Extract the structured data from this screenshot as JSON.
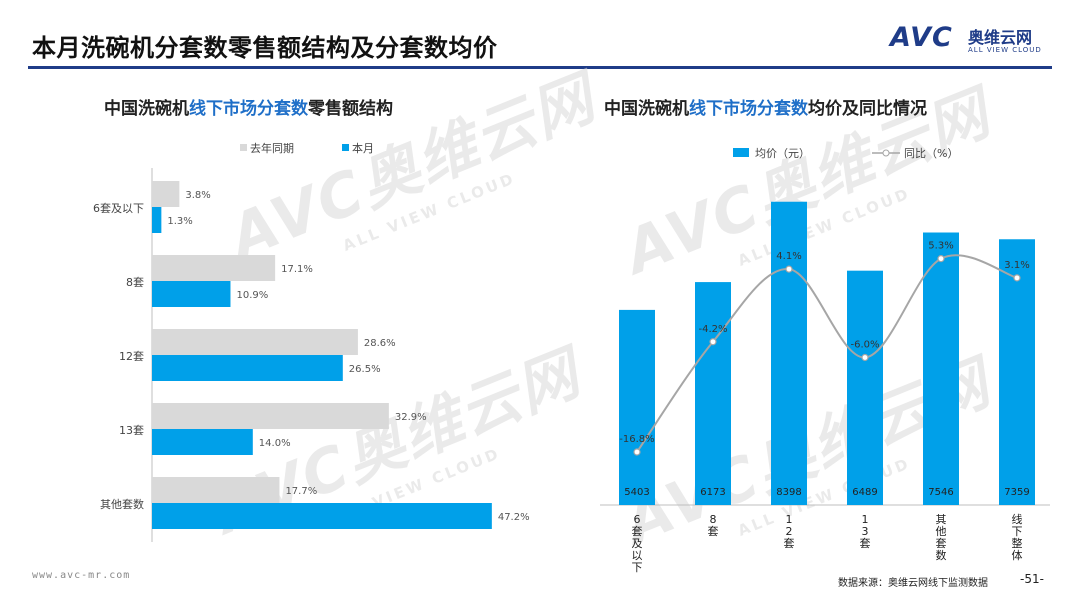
{
  "header": {
    "title": "本月洗碗机分套数零售额结构及分套数均价",
    "logo_mark": "AVC",
    "logo_cn": "奥维云网",
    "logo_en": "ALL VIEW CLOUD",
    "brand_color": "#1f3c88"
  },
  "watermark": {
    "mark": "AVC奥维云网",
    "sub": "ALL VIEW CLOUD"
  },
  "left_chart": {
    "title_pre": "中国洗碗机",
    "title_hl": "线下市场分套数",
    "title_post": "零售额结构",
    "chart_data": {
      "type": "bar",
      "orientation": "horizontal",
      "categories": [
        "6套及以下",
        "8套",
        "12套",
        "13套",
        "其他套数"
      ],
      "series": [
        {
          "name": "去年同期",
          "values": [
            3.8,
            17.1,
            28.6,
            32.9,
            17.7
          ],
          "labels": [
            "3.8%",
            "17.1%",
            "28.6%",
            "32.9%",
            "17.7%"
          ],
          "color": "#d9d9d9"
        },
        {
          "name": "本月",
          "values": [
            1.3,
            10.9,
            26.5,
            14.0,
            47.2
          ],
          "labels": [
            "1.3%",
            "10.9%",
            "26.5%",
            "14.0%",
            "47.2%"
          ],
          "color": "#00a0e9"
        }
      ],
      "xlim": [
        0,
        50
      ],
      "legend": "top-left"
    }
  },
  "right_chart": {
    "title_pre": "中国洗碗机",
    "title_hl": "线下市场分套数",
    "title_post": "均价及同比情况",
    "chart_data": {
      "type": "bar",
      "categories": [
        "6套及以下",
        "8套",
        "12套",
        "13套",
        "其他套数",
        "线下整体"
      ],
      "bar_series": {
        "name": "均价（元）",
        "values": [
          5403,
          6173,
          8398,
          6489,
          7546,
          7359
        ],
        "color": "#00a0e9",
        "ylim": [
          0,
          9000
        ]
      },
      "line_series": {
        "name": "同比（%）",
        "values": [
          -16.8,
          -4.2,
          4.1,
          -6.0,
          5.3,
          3.1
        ],
        "labels": [
          "-16.8%",
          "-4.2%",
          "4.1%",
          "-6.0%",
          "5.3%",
          "3.1%"
        ],
        "color": "#a6a6a6",
        "ylim": [
          -20,
          12
        ]
      },
      "legend": "top-center"
    }
  },
  "footer": {
    "url": "www.avc-mr.com",
    "source": "数据来源：奥维云网线下监测数据",
    "page": "-51-"
  }
}
